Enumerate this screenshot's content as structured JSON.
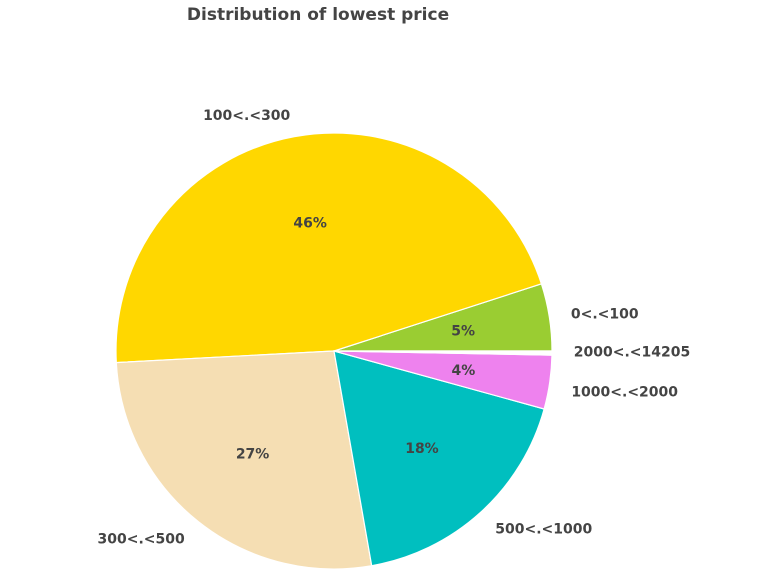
{
  "chart_data": {
    "type": "pie",
    "title": "Distribution of lowest price",
    "slices": [
      {
        "label": "0<.<100",
        "value": 5,
        "pct_label": "5%",
        "color": "#9acd32"
      },
      {
        "label": "100<.<300",
        "value": 46,
        "pct_label": "46%",
        "color": "#ffd700"
      },
      {
        "label": "300<.<500",
        "value": 27,
        "pct_label": "27%",
        "color": "#f5deb3"
      },
      {
        "label": "500<.<1000",
        "value": 18,
        "pct_label": "18%",
        "color": "#00bfbf"
      },
      {
        "label": "1000<.<2000",
        "value": 4,
        "pct_label": "4%",
        "color": "#ee82ee"
      },
      {
        "label": "2000<.<14205",
        "value": 0.3,
        "pct_label": "",
        "color": "#ffffff"
      }
    ]
  }
}
